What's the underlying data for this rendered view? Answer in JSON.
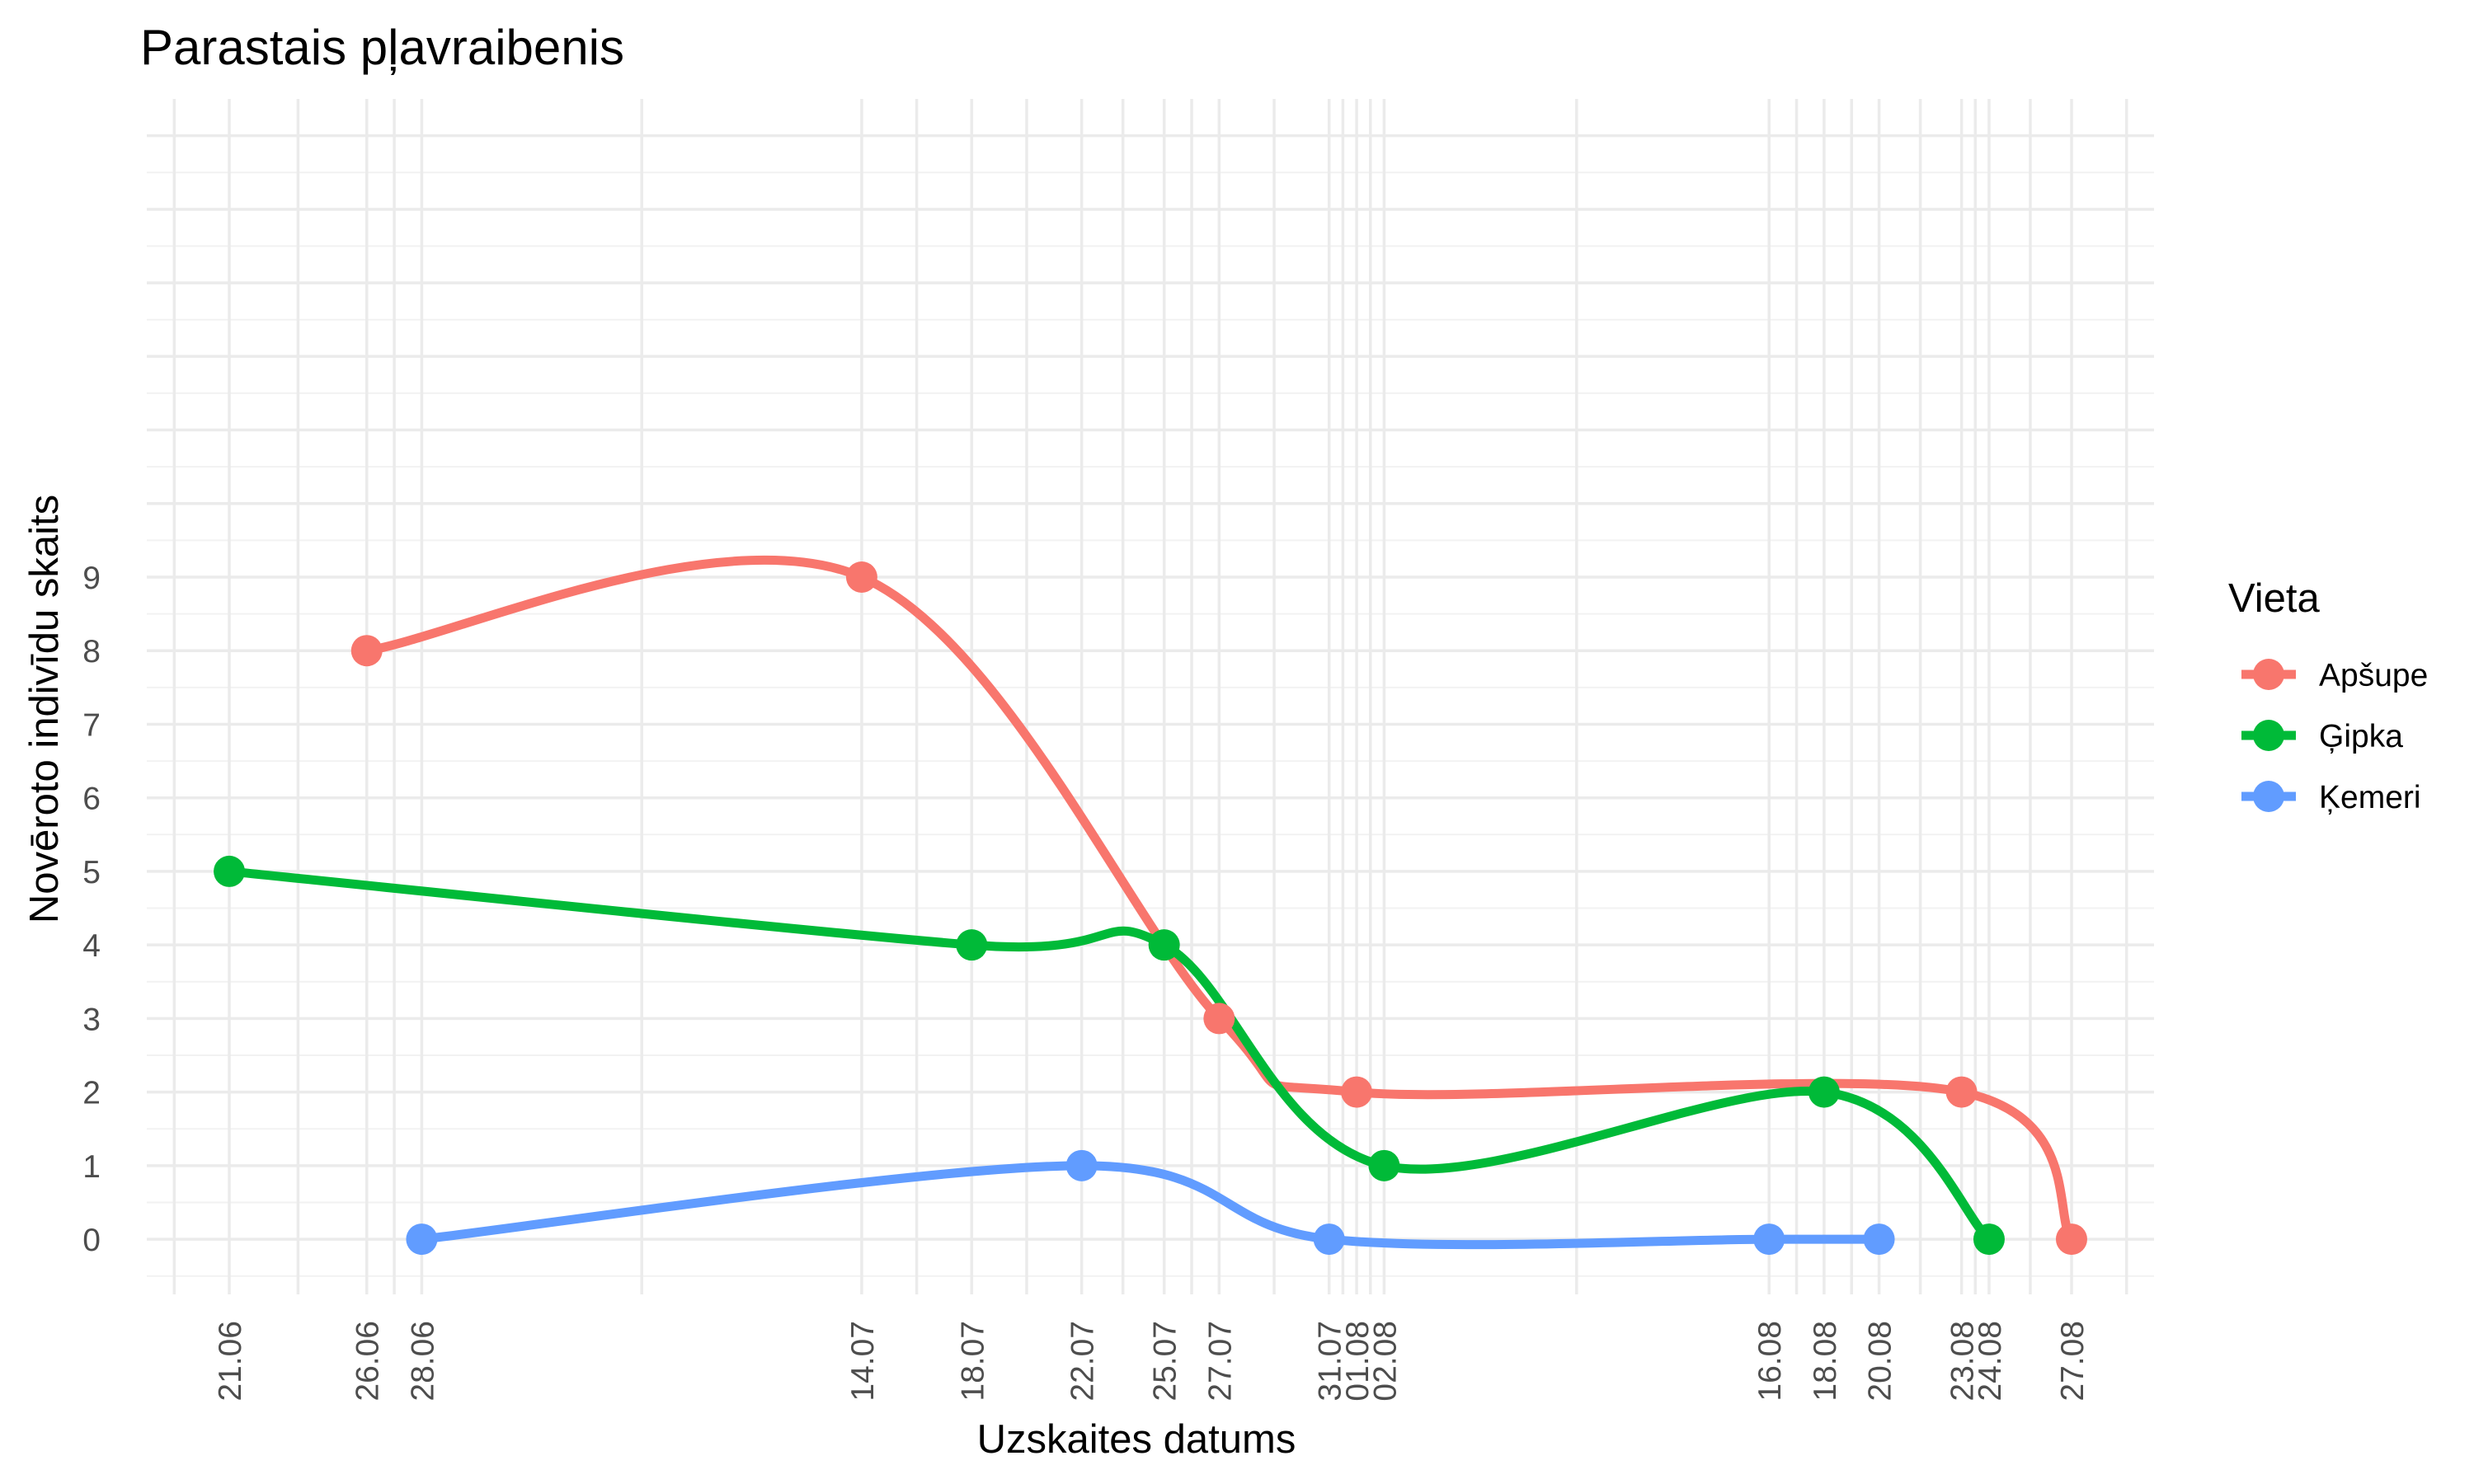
{
  "chart_data": {
    "type": "line",
    "title": "Parastais pļavraibenis",
    "xlabel": "Uzskaites datums",
    "ylabel": "Novēroto indivīdu skaits",
    "x_ticks": [
      "21.06",
      "26.06",
      "28.06",
      "14.07",
      "18.07",
      "22.07",
      "25.07",
      "27.07",
      "31.07",
      "01.08",
      "02.08",
      "16.08",
      "18.08",
      "20.08",
      "23.08",
      "24.08",
      "27.08"
    ],
    "y_ticks": [
      "0",
      "1",
      "2",
      "3",
      "4",
      "5",
      "6",
      "7",
      "8",
      "9"
    ],
    "ylim": [
      -0.75,
      15.5
    ],
    "xlim": [
      "18.06",
      "30.08"
    ],
    "grid": true,
    "legend": {
      "title": "Vieta",
      "position": "right"
    },
    "series": [
      {
        "name": "Apšupe",
        "color": "#F8766D",
        "points": [
          {
            "x": "26.06",
            "y": 8
          },
          {
            "x": "14.07",
            "y": 9
          },
          {
            "x": "27.07",
            "y": 3
          },
          {
            "x": "01.08",
            "y": 2
          },
          {
            "x": "23.08",
            "y": 2
          },
          {
            "x": "27.08",
            "y": 0
          }
        ]
      },
      {
        "name": "Ģipka",
        "color": "#00BA38",
        "points": [
          {
            "x": "21.06",
            "y": 5
          },
          {
            "x": "18.07",
            "y": 4
          },
          {
            "x": "25.07",
            "y": 4
          },
          {
            "x": "02.08",
            "y": 1
          },
          {
            "x": "18.08",
            "y": 2
          },
          {
            "x": "24.08",
            "y": 0
          }
        ]
      },
      {
        "name": "Ķemeri",
        "color": "#619CFF",
        "points": [
          {
            "x": "28.06",
            "y": 0
          },
          {
            "x": "22.07",
            "y": 1
          },
          {
            "x": "31.07",
            "y": 0
          },
          {
            "x": "16.08",
            "y": 0
          },
          {
            "x": "20.08",
            "y": 0
          }
        ]
      }
    ]
  }
}
